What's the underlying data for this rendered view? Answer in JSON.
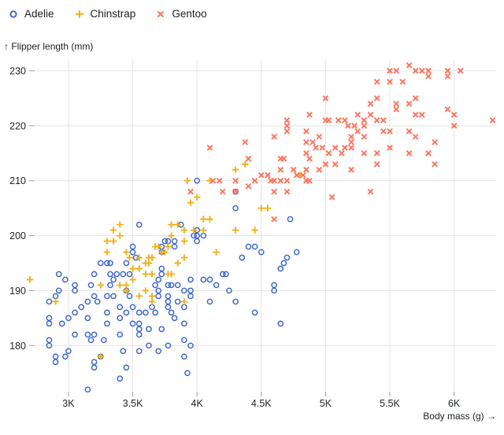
{
  "labels": {
    "y_axis": "↑ Flipper length (mm)",
    "x_axis": "Body mass (g) →"
  },
  "chart_data": {
    "type": "scatter",
    "title": "",
    "xlabel": "Body mass (g)",
    "ylabel": "Flipper length (mm)",
    "grid": true,
    "legend_position": "top-left",
    "xlim": [
      2743,
      6327
    ],
    "ylim": [
      171.6,
      232
    ],
    "x_ticks": {
      "values": [
        3000,
        3500,
        4000,
        4500,
        5000,
        5500,
        6000
      ],
      "labels": [
        "3K",
        "3.5K",
        "4K",
        "4.5K",
        "5K",
        "5.5K",
        "6K"
      ]
    },
    "y_ticks": {
      "values": [
        180,
        190,
        200,
        210,
        220,
        230
      ],
      "labels": [
        "180",
        "190",
        "200",
        "210",
        "220",
        "230"
      ]
    },
    "series": [
      {
        "name": "Adelie",
        "symbol": "circle",
        "color": "#4269d0",
        "points": [
          [
            4000,
            210
          ],
          [
            4300,
            208
          ],
          [
            4300,
            205
          ],
          [
            4725,
            203
          ],
          [
            3550,
            202
          ],
          [
            3875,
            202
          ],
          [
            4000,
            201
          ],
          [
            3750,
            199
          ],
          [
            3775,
            199
          ],
          [
            3825,
            199
          ],
          [
            4000,
            199
          ],
          [
            3975,
            200
          ],
          [
            4000,
            200
          ],
          [
            4050,
            200
          ],
          [
            3500,
            198
          ],
          [
            3725,
            198
          ],
          [
            3825,
            198
          ],
          [
            4400,
            198
          ],
          [
            4450,
            198
          ],
          [
            3500,
            197
          ],
          [
            3725,
            197
          ],
          [
            4500,
            197
          ],
          [
            4775,
            197
          ],
          [
            3525,
            196
          ],
          [
            4350,
            196
          ],
          [
            4700,
            196
          ],
          [
            3250,
            195
          ],
          [
            3300,
            195
          ],
          [
            3325,
            195
          ],
          [
            3450,
            195
          ],
          [
            4675,
            195
          ],
          [
            3725,
            194
          ],
          [
            4650,
            194
          ],
          [
            2925,
            193
          ],
          [
            3200,
            193
          ],
          [
            3325,
            193
          ],
          [
            3375,
            193
          ],
          [
            3425,
            193
          ],
          [
            3475,
            193
          ],
          [
            3725,
            193
          ],
          [
            4200,
            193
          ],
          [
            4225,
            193
          ],
          [
            2975,
            192
          ],
          [
            3350,
            192
          ],
          [
            3700,
            192
          ],
          [
            3950,
            192
          ],
          [
            4050,
            192
          ],
          [
            4100,
            192
          ],
          [
            3050,
            191
          ],
          [
            3175,
            191
          ],
          [
            3325,
            191
          ],
          [
            3675,
            191
          ],
          [
            3775,
            191
          ],
          [
            3800,
            191
          ],
          [
            3850,
            191
          ],
          [
            4150,
            191
          ],
          [
            4600,
            191
          ],
          [
            2925,
            190
          ],
          [
            3050,
            190
          ],
          [
            3450,
            190
          ],
          [
            3700,
            190
          ],
          [
            3900,
            190
          ],
          [
            3950,
            190
          ],
          [
            4250,
            190
          ],
          [
            4600,
            190
          ],
          [
            2900,
            189
          ],
          [
            3200,
            189
          ],
          [
            3300,
            189
          ],
          [
            3350,
            189
          ],
          [
            3475,
            189
          ],
          [
            3700,
            189
          ],
          [
            3775,
            189
          ],
          [
            3950,
            189
          ],
          [
            2850,
            188
          ],
          [
            3150,
            188
          ],
          [
            3225,
            188
          ],
          [
            3775,
            188
          ],
          [
            3850,
            188
          ],
          [
            4100,
            188
          ],
          [
            4300,
            188
          ],
          [
            3100,
            187
          ],
          [
            3400,
            187
          ],
          [
            3500,
            187
          ],
          [
            3650,
            187
          ],
          [
            3775,
            187
          ],
          [
            3900,
            187
          ],
          [
            3050,
            186
          ],
          [
            3300,
            186
          ],
          [
            3450,
            186
          ],
          [
            3550,
            186
          ],
          [
            3600,
            186
          ],
          [
            3675,
            186
          ],
          [
            3800,
            186
          ],
          [
            4450,
            186
          ],
          [
            2850,
            185
          ],
          [
            3000,
            185
          ],
          [
            3150,
            185
          ],
          [
            3400,
            185
          ],
          [
            3825,
            185
          ],
          [
            2850,
            184
          ],
          [
            2950,
            184
          ],
          [
            3300,
            184
          ],
          [
            3500,
            184
          ],
          [
            3550,
            184
          ],
          [
            3900,
            184
          ],
          [
            4650,
            184
          ],
          [
            3625,
            183
          ],
          [
            3725,
            183
          ],
          [
            3550,
            183
          ],
          [
            3050,
            182
          ],
          [
            3150,
            182
          ],
          [
            3200,
            182
          ],
          [
            3400,
            182
          ],
          [
            3550,
            182
          ],
          [
            2850,
            181
          ],
          [
            3175,
            181
          ],
          [
            3275,
            181
          ],
          [
            3900,
            181
          ],
          [
            2850,
            180
          ],
          [
            3625,
            180
          ],
          [
            3775,
            180
          ],
          [
            3950,
            180
          ],
          [
            3000,
            179
          ],
          [
            3425,
            179
          ],
          [
            3550,
            179
          ],
          [
            3700,
            179
          ],
          [
            2900,
            178
          ],
          [
            2975,
            178
          ],
          [
            3250,
            178
          ],
          [
            3900,
            178
          ],
          [
            2900,
            177
          ],
          [
            3200,
            177
          ],
          [
            3200,
            176
          ],
          [
            3450,
            176
          ],
          [
            3925,
            175
          ],
          [
            3400,
            174
          ],
          [
            3150,
            172
          ]
        ]
      },
      {
        "name": "Chinstrap",
        "symbol": "plus",
        "color": "#efb118",
        "points": [
          [
            2700,
            192
          ],
          [
            2900,
            188
          ],
          [
            3250,
            178
          ],
          [
            3250,
            191
          ],
          [
            3300,
            197
          ],
          [
            3300,
            199
          ],
          [
            3350,
            199
          ],
          [
            3350,
            201
          ],
          [
            3400,
            191
          ],
          [
            3400,
            200
          ],
          [
            3400,
            202
          ],
          [
            3450,
            190
          ],
          [
            3450,
            191
          ],
          [
            3450,
            197
          ],
          [
            3475,
            196
          ],
          [
            3500,
            192
          ],
          [
            3500,
            194
          ],
          [
            3550,
            189
          ],
          [
            3550,
            194
          ],
          [
            3550,
            196
          ],
          [
            3600,
            190
          ],
          [
            3600,
            193
          ],
          [
            3600,
            195
          ],
          [
            3625,
            195
          ],
          [
            3625,
            196
          ],
          [
            3650,
            188
          ],
          [
            3650,
            189
          ],
          [
            3650,
            193
          ],
          [
            3650,
            196
          ],
          [
            3675,
            198
          ],
          [
            3700,
            198
          ],
          [
            3725,
            197
          ],
          [
            3750,
            197
          ],
          [
            3775,
            193
          ],
          [
            3775,
            198
          ],
          [
            3800,
            193
          ],
          [
            3800,
            200
          ],
          [
            3800,
            202
          ],
          [
            3850,
            195
          ],
          [
            3850,
            202
          ],
          [
            3900,
            188
          ],
          [
            3900,
            196
          ],
          [
            3900,
            199
          ],
          [
            3900,
            201
          ],
          [
            3925,
            210
          ],
          [
            3950,
            206
          ],
          [
            3975,
            201
          ],
          [
            4000,
            207
          ],
          [
            4050,
            201
          ],
          [
            4050,
            203
          ],
          [
            4100,
            203
          ],
          [
            4100,
            210
          ],
          [
            4150,
            197
          ],
          [
            4300,
            201
          ],
          [
            4300,
            212
          ],
          [
            4375,
            213
          ],
          [
            4450,
            201
          ],
          [
            4500,
            205
          ],
          [
            4550,
            205
          ],
          [
            4800,
            211
          ]
        ]
      },
      {
        "name": "Gentoo",
        "symbol": "times",
        "color": "#ff725c",
        "points": [
          [
            3950,
            208
          ],
          [
            4100,
            216
          ],
          [
            4125,
            210
          ],
          [
            4175,
            210
          ],
          [
            4200,
            208
          ],
          [
            4300,
            208
          ],
          [
            4300,
            210
          ],
          [
            4375,
            217
          ],
          [
            4400,
            209
          ],
          [
            4400,
            214
          ],
          [
            4450,
            210
          ],
          [
            4500,
            211
          ],
          [
            4550,
            211
          ],
          [
            4575,
            210
          ],
          [
            4600,
            203
          ],
          [
            4600,
            208
          ],
          [
            4600,
            210
          ],
          [
            4600,
            218
          ],
          [
            4650,
            210
          ],
          [
            4650,
            212
          ],
          [
            4650,
            214
          ],
          [
            4675,
            214
          ],
          [
            4700,
            208
          ],
          [
            4700,
            210
          ],
          [
            4700,
            219
          ],
          [
            4700,
            220
          ],
          [
            4700,
            221
          ],
          [
            4750,
            212
          ],
          [
            4775,
            211
          ],
          [
            4825,
            211
          ],
          [
            4850,
            210
          ],
          [
            4850,
            212
          ],
          [
            4850,
            215
          ],
          [
            4850,
            217
          ],
          [
            4850,
            219
          ],
          [
            4875,
            210
          ],
          [
            4875,
            214
          ],
          [
            4875,
            222
          ],
          [
            4900,
            217
          ],
          [
            4925,
            216
          ],
          [
            4950,
            212
          ],
          [
            4950,
            218
          ],
          [
            4975,
            216
          ],
          [
            5000,
            213
          ],
          [
            5000,
            221
          ],
          [
            5000,
            225
          ],
          [
            5025,
            215
          ],
          [
            5025,
            221
          ],
          [
            5050,
            207
          ],
          [
            5075,
            213
          ],
          [
            5075,
            216
          ],
          [
            5100,
            221
          ],
          [
            5125,
            215
          ],
          [
            5150,
            216
          ],
          [
            5150,
            221
          ],
          [
            5175,
            220
          ],
          [
            5200,
            212
          ],
          [
            5200,
            216
          ],
          [
            5200,
            217
          ],
          [
            5200,
            218
          ],
          [
            5225,
            220
          ],
          [
            5250,
            219
          ],
          [
            5250,
            222
          ],
          [
            5300,
            215
          ],
          [
            5300,
            218
          ],
          [
            5300,
            220
          ],
          [
            5300,
            221
          ],
          [
            5350,
            208
          ],
          [
            5350,
            222
          ],
          [
            5350,
            224
          ],
          [
            5400,
            213
          ],
          [
            5400,
            215
          ],
          [
            5400,
            221
          ],
          [
            5400,
            225
          ],
          [
            5400,
            228
          ],
          [
            5450,
            219
          ],
          [
            5450,
            221
          ],
          [
            5500,
            216
          ],
          [
            5500,
            219
          ],
          [
            5500,
            228
          ],
          [
            5500,
            230
          ],
          [
            5550,
            223
          ],
          [
            5550,
            224
          ],
          [
            5550,
            230
          ],
          [
            5600,
            228
          ],
          [
            5650,
            215
          ],
          [
            5650,
            219
          ],
          [
            5650,
            224
          ],
          [
            5650,
            231
          ],
          [
            5700,
            218
          ],
          [
            5700,
            222
          ],
          [
            5700,
            225
          ],
          [
            5700,
            230
          ],
          [
            5750,
            222
          ],
          [
            5750,
            230
          ],
          [
            5800,
            215
          ],
          [
            5800,
            229
          ],
          [
            5800,
            230
          ],
          [
            5850,
            213
          ],
          [
            5850,
            217
          ],
          [
            5950,
            223
          ],
          [
            5950,
            229
          ],
          [
            5950,
            230
          ],
          [
            6000,
            220
          ],
          [
            6000,
            222
          ],
          [
            6050,
            230
          ],
          [
            6300,
            221
          ]
        ]
      }
    ]
  },
  "style": {
    "grid_color": "#e4e4e4",
    "tick_color": "#9e9e9e",
    "text_color": "#1b1e23",
    "tick_label_color": "#22262b"
  }
}
